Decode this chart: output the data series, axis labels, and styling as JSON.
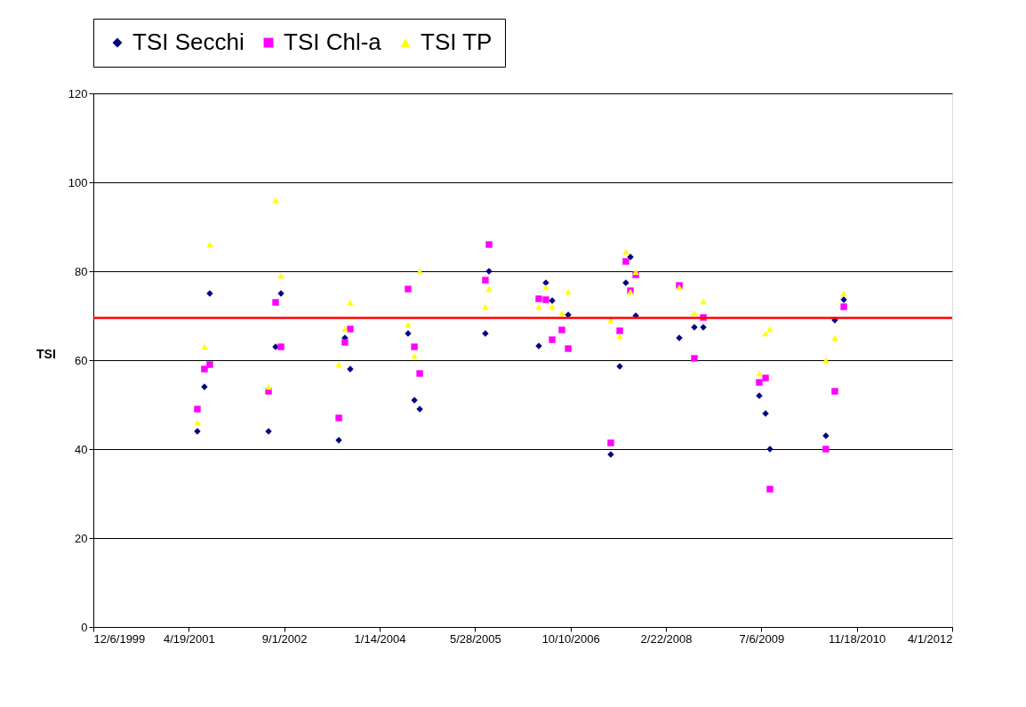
{
  "chart_data": {
    "type": "scatter",
    "ylabel": "TSI",
    "ylim": [
      0,
      120
    ],
    "yticks": [
      0,
      20,
      40,
      60,
      80,
      100,
      120
    ],
    "xlim": [
      "1999-12-06",
      "2012-04-01"
    ],
    "xticks": [
      {
        "value": "1999-12-06",
        "label": "12/6/1999"
      },
      {
        "value": "2001-04-19",
        "label": "4/19/2001"
      },
      {
        "value": "2002-09-01",
        "label": "9/1/2002"
      },
      {
        "value": "2004-01-14",
        "label": "1/14/2004"
      },
      {
        "value": "2005-05-28",
        "label": "5/28/2005"
      },
      {
        "value": "2006-10-10",
        "label": "10/10/2006"
      },
      {
        "value": "2008-02-22",
        "label": "2/22/2008"
      },
      {
        "value": "2009-07-06",
        "label": "7/6/2009"
      },
      {
        "value": "2010-11-18",
        "label": "11/18/2010"
      },
      {
        "value": "2012-04-01",
        "label": "4/1/2012"
      }
    ],
    "grid": "y",
    "legend": "top",
    "ref_lines": [
      {
        "axis": "y",
        "value": 69.5,
        "color": "#ff0000"
      }
    ],
    "series": [
      {
        "name": "TSI Secchi",
        "color": "#000080",
        "marker": "diamond",
        "x": [
          "2001-06-03",
          "2001-07-10",
          "2001-08-07",
          "2002-06-11",
          "2002-07-18",
          "2002-08-15",
          "2003-06-14",
          "2003-07-16",
          "2003-08-13",
          "2004-06-11",
          "2004-07-14",
          "2004-08-11",
          "2005-07-21",
          "2005-08-09",
          "2006-04-27",
          "2006-06-03",
          "2006-07-06",
          "2006-09-28",
          "2007-05-09",
          "2007-06-25",
          "2007-07-27",
          "2007-08-20",
          "2007-09-17",
          "2008-05-02",
          "2008-07-20",
          "2008-09-05",
          "2009-06-25",
          "2009-07-28",
          "2009-08-20",
          "2010-06-09",
          "2010-07-26",
          "2010-09-11"
        ],
        "values": [
          44,
          54,
          75,
          44,
          63,
          75,
          42,
          65,
          58,
          66,
          51,
          49,
          66,
          80,
          63.2,
          77.4,
          73.4,
          70.2,
          38.8,
          58.6,
          77.4,
          83.2,
          70,
          65,
          67.4,
          67.4,
          52,
          48,
          40,
          43,
          69,
          73.6
        ]
      },
      {
        "name": "TSI Chl-a",
        "color": "#ff00ff",
        "marker": "square",
        "x": [
          "2001-06-03",
          "2001-07-10",
          "2001-08-07",
          "2002-06-11",
          "2002-07-18",
          "2002-08-15",
          "2003-06-14",
          "2003-07-16",
          "2003-08-13",
          "2004-06-11",
          "2004-07-14",
          "2004-08-11",
          "2005-07-21",
          "2005-08-09",
          "2006-04-27",
          "2006-06-03",
          "2006-07-06",
          "2006-08-26",
          "2006-09-28",
          "2007-05-09",
          "2007-06-25",
          "2007-07-27",
          "2007-08-20",
          "2007-09-17",
          "2008-05-02",
          "2008-07-20",
          "2008-09-05",
          "2009-06-25",
          "2009-07-28",
          "2009-08-20",
          "2010-06-09",
          "2010-07-26",
          "2010-09-11"
        ],
        "values": [
          49,
          58,
          59,
          53,
          73,
          63,
          47,
          64,
          67,
          76,
          63,
          57,
          78,
          86,
          73.8,
          73.6,
          64.6,
          66.8,
          62.6,
          41.4,
          66.6,
          82.2,
          75.6,
          79.2,
          76.8,
          60.4,
          69.6,
          55,
          56,
          31,
          40,
          53,
          72
        ]
      },
      {
        "name": "TSI TP",
        "color": "#ffff00",
        "marker": "triangle",
        "x": [
          "2001-06-03",
          "2001-07-10",
          "2001-08-07",
          "2002-06-11",
          "2002-07-18",
          "2002-08-15",
          "2003-06-14",
          "2003-07-16",
          "2003-08-13",
          "2004-06-11",
          "2004-07-14",
          "2004-08-11",
          "2005-07-21",
          "2005-08-09",
          "2006-04-27",
          "2006-06-03",
          "2006-07-06",
          "2006-08-26",
          "2006-09-28",
          "2007-05-09",
          "2007-06-25",
          "2007-07-27",
          "2007-08-20",
          "2007-09-17",
          "2008-05-02",
          "2008-07-20",
          "2008-09-05",
          "2009-06-25",
          "2009-07-28",
          "2009-08-20",
          "2010-06-09",
          "2010-07-26",
          "2010-09-11"
        ],
        "values": [
          46,
          63,
          86,
          54,
          96,
          79,
          59,
          67,
          73,
          68,
          61,
          80,
          72,
          76,
          72,
          76.4,
          72,
          70.6,
          75.4,
          69,
          65.4,
          84.4,
          75.4,
          79.8,
          76.4,
          70.6,
          73.2,
          57,
          66,
          67,
          60,
          65,
          75
        ]
      }
    ]
  }
}
